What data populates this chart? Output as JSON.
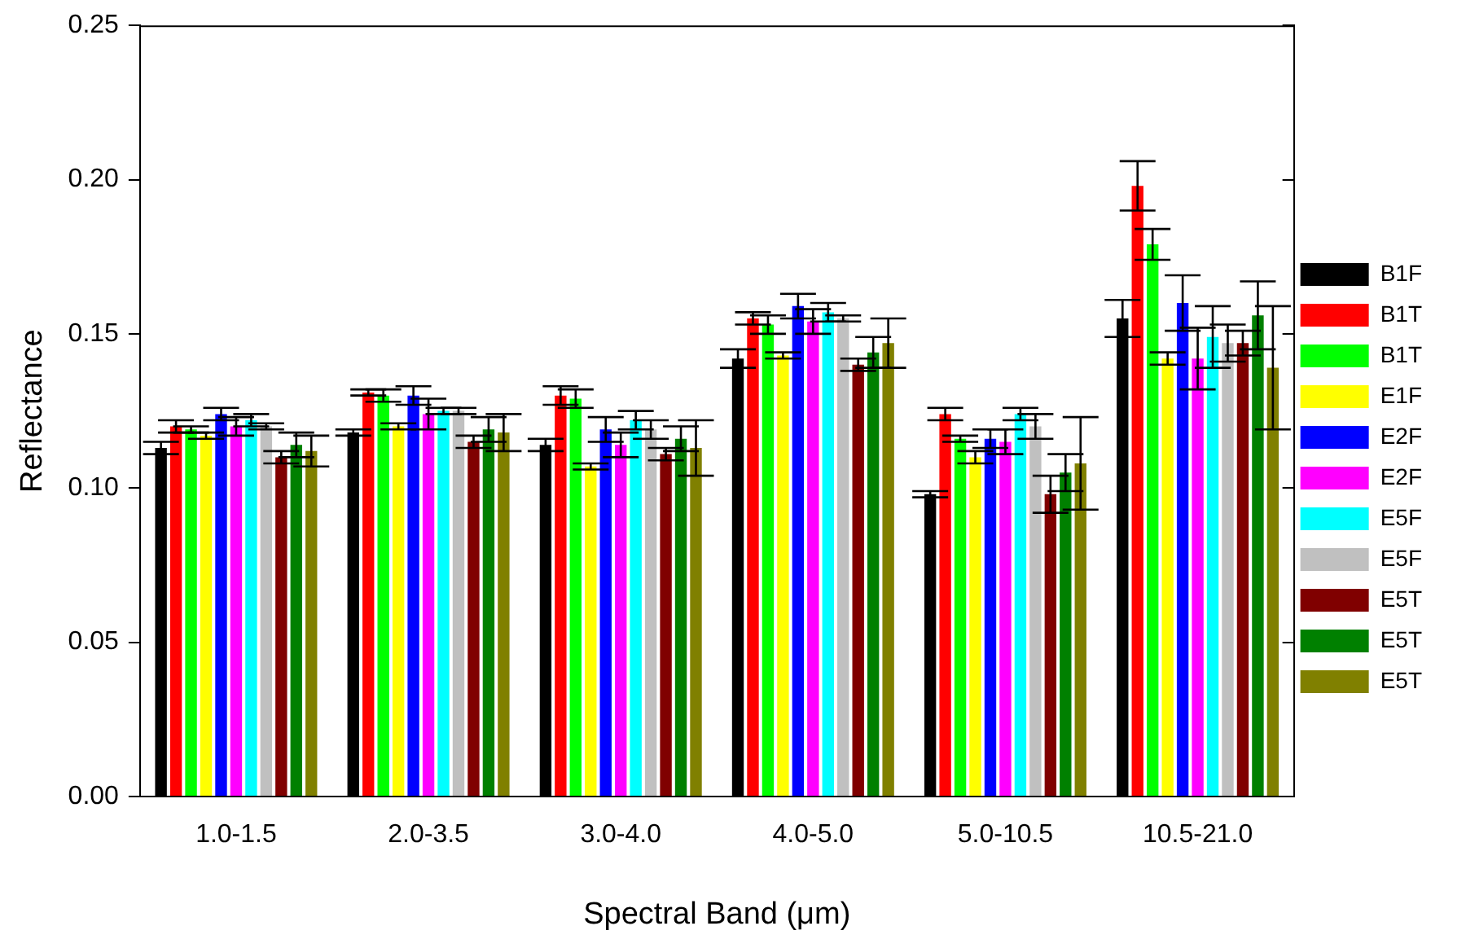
{
  "chart_data": {
    "type": "bar",
    "xlabel": "Spectral Band (μm)",
    "ylabel": "Reflectance",
    "categories": [
      "1.0-1.5",
      "2.0-3.5",
      "3.0-4.0",
      "4.0-5.0",
      "5.0-10.5",
      "10.5-21.0"
    ],
    "ylim": [
      0,
      0.25
    ],
    "yticks": [
      {
        "value": 0,
        "label": "0.00"
      },
      {
        "value": 0.05,
        "label": "0.05"
      },
      {
        "value": 0.1,
        "label": "0.10"
      },
      {
        "value": 0.15,
        "label": "0.15"
      },
      {
        "value": 0.2,
        "label": "0.20"
      },
      {
        "value": 0.25,
        "label": "0.25"
      }
    ],
    "grid": false,
    "legend": "right",
    "series": [
      {
        "name": "B1F",
        "color": "#000000",
        "values": [
          0.113,
          0.118,
          0.114,
          0.142,
          0.098,
          0.155
        ],
        "errors": [
          0.002,
          0.001,
          0.002,
          0.003,
          0.001,
          0.006
        ]
      },
      {
        "name": "B1T",
        "color": "#ff0000",
        "values": [
          0.12,
          0.131,
          0.13,
          0.155,
          0.124,
          0.198
        ],
        "errors": [
          0.002,
          0.001,
          0.003,
          0.002,
          0.002,
          0.008
        ]
      },
      {
        "name": "B1T",
        "color": "#00ff00",
        "values": [
          0.119,
          0.13,
          0.129,
          0.153,
          0.116,
          0.179
        ],
        "errors": [
          0.001,
          0.002,
          0.003,
          0.003,
          0.001,
          0.005
        ]
      },
      {
        "name": "E1F",
        "color": "#ffff00",
        "values": [
          0.117,
          0.12,
          0.107,
          0.143,
          0.11,
          0.142
        ],
        "errors": [
          0.001,
          0.001,
          0.001,
          0.001,
          0.002,
          0.002
        ]
      },
      {
        "name": "E2F",
        "color": "#0000ff",
        "values": [
          0.124,
          0.13,
          0.119,
          0.159,
          0.116,
          0.16
        ],
        "errors": [
          0.002,
          0.003,
          0.004,
          0.004,
          0.003,
          0.009
        ]
      },
      {
        "name": "E2F",
        "color": "#ff00ff",
        "values": [
          0.12,
          0.124,
          0.114,
          0.154,
          0.115,
          0.142
        ],
        "errors": [
          0.003,
          0.005,
          0.004,
          0.004,
          0.004,
          0.01
        ]
      },
      {
        "name": "E5F",
        "color": "#00ffff",
        "values": [
          0.122,
          0.125,
          0.122,
          0.157,
          0.124,
          0.149
        ],
        "errors": [
          0.002,
          0.001,
          0.003,
          0.003,
          0.002,
          0.01
        ]
      },
      {
        "name": "E5F",
        "color": "#c0c0c0",
        "values": [
          0.12,
          0.125,
          0.119,
          0.155,
          0.12,
          0.147
        ],
        "errors": [
          0.001,
          0.001,
          0.003,
          0.001,
          0.004,
          0.006
        ]
      },
      {
        "name": "E5T",
        "color": "#800000",
        "values": [
          0.11,
          0.115,
          0.111,
          0.14,
          0.098,
          0.147
        ],
        "errors": [
          0.002,
          0.002,
          0.002,
          0.002,
          0.006,
          0.004
        ]
      },
      {
        "name": "E5T",
        "color": "#008000",
        "values": [
          0.114,
          0.119,
          0.116,
          0.144,
          0.105,
          0.156
        ],
        "errors": [
          0.004,
          0.004,
          0.004,
          0.005,
          0.006,
          0.011
        ]
      },
      {
        "name": "E5T",
        "color": "#808000",
        "values": [
          0.112,
          0.118,
          0.113,
          0.147,
          0.108,
          0.139
        ],
        "errors": [
          0.005,
          0.006,
          0.009,
          0.008,
          0.015,
          0.02
        ]
      }
    ]
  }
}
